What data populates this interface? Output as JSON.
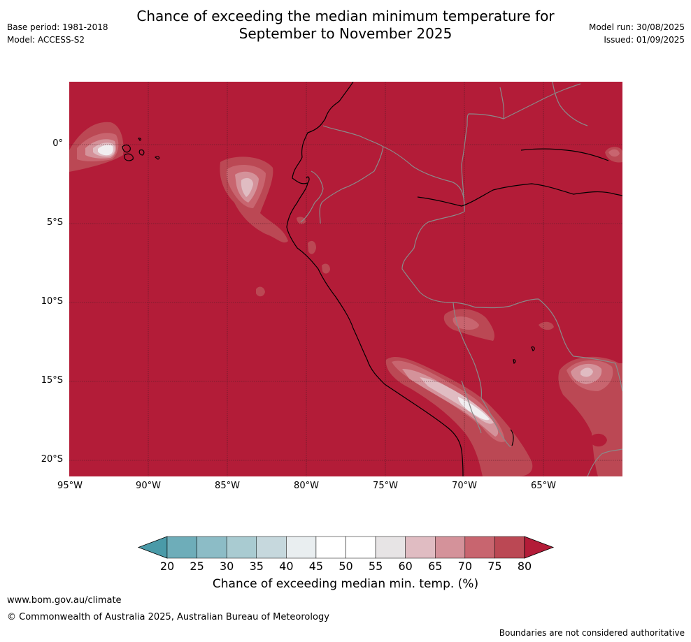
{
  "title": {
    "line1": "Chance of exceeding the median minimum temperature for",
    "line2": "September to November 2025"
  },
  "meta": {
    "base_period": "Base period: 1981-2018",
    "model": "Model: ACCESS-S2",
    "model_run": "Model run: 30/08/2025",
    "issued": "Issued: 01/09/2025"
  },
  "map": {
    "background_color": "#b31c38",
    "lat_labels": [
      "0°",
      "5°S",
      "10°S",
      "15°S",
      "20°S"
    ],
    "lon_labels": [
      "95°W",
      "90°W",
      "85°W",
      "80°W",
      "75°W",
      "70°W",
      "65°W"
    ]
  },
  "colorbar": {
    "ticks": [
      "20",
      "25",
      "30",
      "35",
      "40",
      "45",
      "50",
      "55",
      "60",
      "65",
      "70",
      "75",
      "80"
    ],
    "colors": [
      "#4a9aa8",
      "#6eadb9",
      "#8cbcc6",
      "#a9cbd1",
      "#c6d8dd",
      "#e9eef0",
      "#ffffff",
      "#ffffff",
      "#e7e4e5",
      "#e0bcc2",
      "#d4929a",
      "#c8656f",
      "#bb4854",
      "#b31c38"
    ],
    "label": "Chance of exceeding median min. temp. (%)"
  },
  "footer": {
    "url": "www.bom.gov.au/climate",
    "copyright": "© Commonwealth of Australia 2025, Australian Bureau of Meteorology",
    "disclaimer": "Boundaries are not considered authoritative"
  }
}
